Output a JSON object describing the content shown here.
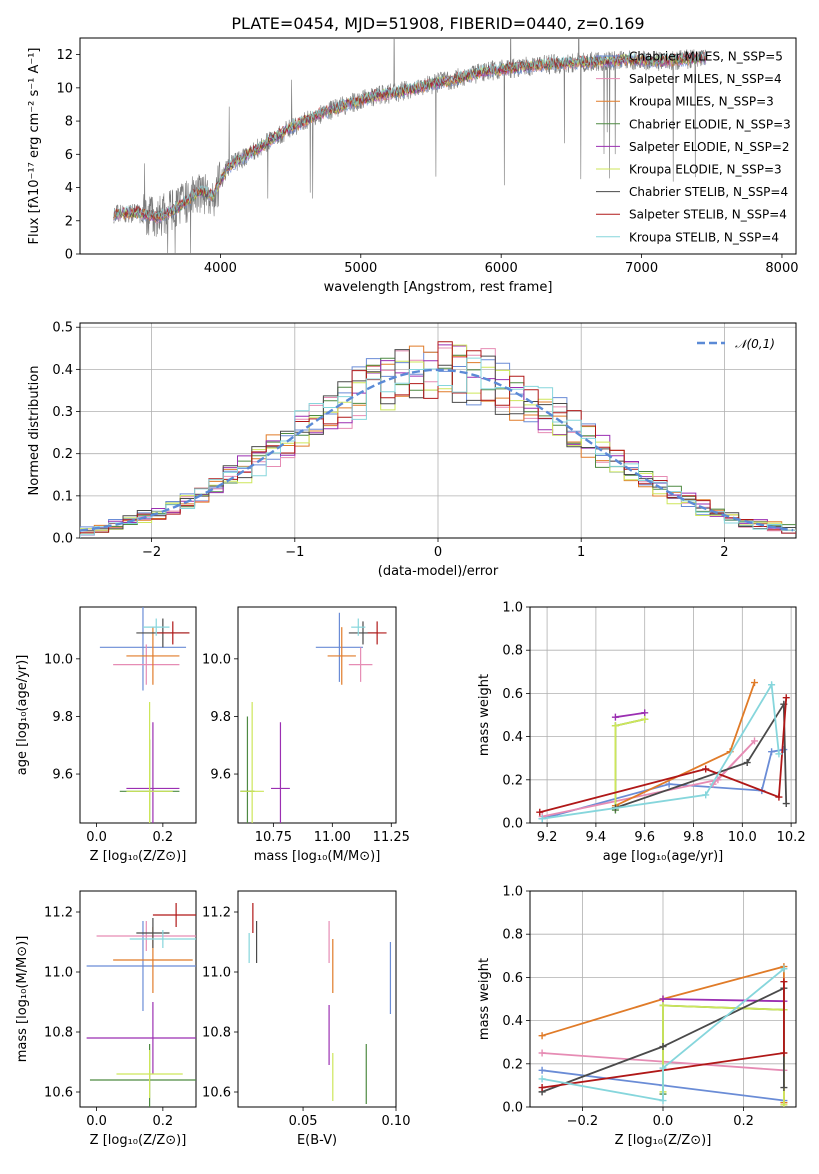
{
  "title": "PLATE=0454, MJD=51908, FIBERID=0440, z=0.169",
  "colors": {
    "chabrier_miles": "#6a8cd6",
    "salpeter_miles": "#e68cb4",
    "kroupa_miles": "#e07b28",
    "chabrier_elodie": "#4e8a42",
    "salpeter_elodie": "#9b2fb2",
    "kroupa_elodie": "#cde65a",
    "chabrier_stelib": "#4a4a4a",
    "salpeter_stelib": "#b01818",
    "kroupa_stelib": "#86d6dc",
    "data": "#7a7a7a",
    "gaussian": "#5b8ad6"
  },
  "chart_data": [
    {
      "id": "spectrum",
      "type": "line",
      "xlabel": "wavelength [Angstrom, rest frame]",
      "ylabel": "Flux [fλ10⁻¹⁷ erg cm⁻² s⁻¹ A⁻¹]",
      "xlim": [
        3000,
        8100
      ],
      "ylim": [
        0,
        13
      ],
      "xticks": [
        "4000",
        "5000",
        "6000",
        "7000",
        "8000"
      ],
      "yticks": [
        "0",
        "2",
        "4",
        "6",
        "8",
        "10",
        "12"
      ],
      "legend_position": "top-right",
      "legend": [
        "Chabrier MILES, N_SSP=5",
        "Salpeter MILES, N_SSP=4",
        "Kroupa MILES, N_SSP=3",
        "Chabrier ELODIE, N_SSP=3",
        "Salpeter ELODIE, N_SSP=2",
        "Kroupa ELODIE, N_SSP=3",
        "Chabrier STELIB, N_SSP=4",
        "Salpeter STELIB, N_SSP=4",
        "Kroupa STELIB, N_SSP=4"
      ],
      "continuum": {
        "x": [
          3250,
          3400,
          3550,
          3700,
          3850,
          3950,
          4050,
          4200,
          4350,
          4500,
          4700,
          4900,
          5100,
          5300,
          5500,
          5700,
          5900,
          6100,
          6300,
          6500,
          6700,
          6900,
          7100,
          7300,
          7450
        ],
        "y": [
          2.4,
          2.5,
          2.2,
          2.8,
          3.8,
          3.5,
          5.2,
          6.0,
          6.8,
          7.6,
          8.4,
          9.0,
          9.5,
          9.8,
          10.2,
          10.6,
          11.0,
          11.2,
          11.4,
          11.5,
          11.6,
          11.7,
          11.6,
          11.7,
          11.8
        ]
      }
    },
    {
      "id": "residuals",
      "type": "histogram",
      "xlabel": "(data-model)/error",
      "ylabel": "Normed distribution",
      "xlim": [
        -2.5,
        2.5
      ],
      "ylim": [
        0,
        0.51
      ],
      "xticks": [
        "−2",
        "−1",
        "0",
        "1",
        "2"
      ],
      "yticks": [
        "0.0",
        "0.1",
        "0.2",
        "0.3",
        "0.4",
        "0.5"
      ],
      "bin_width": 0.1,
      "legend": [
        "𝒩(0,1)"
      ],
      "legend_position": "top-right"
    },
    {
      "id": "age_vs_z",
      "type": "errorbar",
      "xlabel": "Z [log₁₀(Z/Z⊙)]",
      "ylabel": "age  [log₁₀(age/yr)]",
      "xlim": [
        -0.05,
        0.3
      ],
      "ylim": [
        9.43,
        10.18
      ],
      "xticks": [
        "0.0",
        "0.2"
      ],
      "yticks": [
        "9.6",
        "9.8",
        "10.0"
      ],
      "points": [
        {
          "model": "chabrier_miles",
          "x": 0.14,
          "y": 10.04,
          "xerr": 0.13,
          "yerr": 0.15
        },
        {
          "model": "salpeter_miles",
          "x": 0.15,
          "y": 9.98,
          "xerr": 0.1,
          "yerr": 0.07
        },
        {
          "model": "kroupa_miles",
          "x": 0.17,
          "y": 10.01,
          "xerr": 0.08,
          "yerr": 0.1
        },
        {
          "model": "chabrier_elodie",
          "x": 0.16,
          "y": 9.54,
          "xerr": 0.09,
          "yerr": 0.18
        },
        {
          "model": "salpeter_elodie",
          "x": 0.17,
          "y": 9.55,
          "xerr": 0.08,
          "yerr": 0.23
        },
        {
          "model": "kroupa_elodie",
          "x": 0.16,
          "y": 9.54,
          "xerr": 0.07,
          "yerr": 0.31
        },
        {
          "model": "chabrier_stelib",
          "x": 0.2,
          "y": 10.09,
          "xerr": 0.08,
          "yerr": 0.05
        },
        {
          "model": "salpeter_stelib",
          "x": 0.23,
          "y": 10.09,
          "xerr": 0.05,
          "yerr": 0.04
        },
        {
          "model": "kroupa_stelib",
          "x": 0.18,
          "y": 10.11,
          "xerr": 0.04,
          "yerr": 0.03
        }
      ]
    },
    {
      "id": "age_vs_mass",
      "type": "errorbar",
      "xlabel": "mass [log₁₀(M/M⊙)]",
      "ylabel": "",
      "xlim": [
        10.6,
        11.27
      ],
      "ylim": [
        9.43,
        10.18
      ],
      "xticks": [
        "10.75",
        "11.00",
        "11.25"
      ],
      "yticks": [
        "9.6",
        "9.8",
        "10.0"
      ],
      "points": [
        {
          "model": "chabrier_miles",
          "x": 11.03,
          "y": 10.04,
          "xerr": 0.1,
          "yerr": 0.12
        },
        {
          "model": "salpeter_miles",
          "x": 11.12,
          "y": 9.98,
          "xerr": 0.05,
          "yerr": 0.06
        },
        {
          "model": "kroupa_miles",
          "x": 11.04,
          "y": 10.01,
          "xerr": 0.06,
          "yerr": 0.1
        },
        {
          "model": "chabrier_elodie",
          "x": 10.64,
          "y": 9.54,
          "xerr": 0.03,
          "yerr": 0.26
        },
        {
          "model": "salpeter_elodie",
          "x": 10.78,
          "y": 9.55,
          "xerr": 0.04,
          "yerr": 0.23
        },
        {
          "model": "kroupa_elodie",
          "x": 10.66,
          "y": 9.54,
          "xerr": 0.05,
          "yerr": 0.31
        },
        {
          "model": "chabrier_stelib",
          "x": 11.13,
          "y": 10.09,
          "xerr": 0.06,
          "yerr": 0.04
        },
        {
          "model": "salpeter_stelib",
          "x": 11.19,
          "y": 10.09,
          "xerr": 0.04,
          "yerr": 0.04
        },
        {
          "model": "kroupa_stelib",
          "x": 11.11,
          "y": 10.11,
          "xerr": 0.03,
          "yerr": 0.03
        }
      ]
    },
    {
      "id": "weight_vs_age",
      "type": "line",
      "xlabel": "age  [log₁₀(age/yr)]",
      "ylabel": "mass weight",
      "xlim": [
        9.13,
        10.22
      ],
      "ylim": [
        0,
        1
      ],
      "xticks": [
        "9.2",
        "9.4",
        "9.6",
        "9.8",
        "10.0",
        "10.2"
      ],
      "yticks": [
        "0.0",
        "0.2",
        "0.4",
        "0.6",
        "0.8",
        "1.0"
      ],
      "series": [
        {
          "model": "chabrier_miles",
          "x": [
            9.18,
            9.7,
            10.08,
            10.12,
            10.17
          ],
          "y": [
            0.02,
            0.18,
            0.15,
            0.33,
            0.34
          ]
        },
        {
          "model": "salpeter_miles",
          "x": [
            9.18,
            9.9,
            10.05,
            9.88
          ],
          "y": [
            0.03,
            0.2,
            0.38,
            0.18
          ]
        },
        {
          "model": "kroupa_miles",
          "x": [
            9.48,
            9.95,
            10.05
          ],
          "y": [
            0.08,
            0.33,
            0.65
          ]
        },
        {
          "model": "chabrier_elodie",
          "x": [
            9.48,
            9.48,
            9.6
          ],
          "y": [
            0.06,
            0.45,
            0.48
          ]
        },
        {
          "model": "salpeter_elodie",
          "x": [
            9.48,
            9.6
          ],
          "y": [
            0.49,
            0.51
          ]
        },
        {
          "model": "kroupa_elodie",
          "x": [
            9.48,
            9.48,
            9.6
          ],
          "y": [
            0.07,
            0.45,
            0.48
          ]
        },
        {
          "model": "chabrier_stelib",
          "x": [
            9.48,
            10.02,
            10.17,
            10.18
          ],
          "y": [
            0.07,
            0.28,
            0.55,
            0.09
          ]
        },
        {
          "model": "salpeter_stelib",
          "x": [
            9.17,
            9.85,
            10.15,
            10.18
          ],
          "y": [
            0.05,
            0.25,
            0.12,
            0.58
          ]
        },
        {
          "model": "kroupa_stelib",
          "x": [
            9.18,
            9.85,
            10.12,
            10.15
          ],
          "y": [
            0.02,
            0.13,
            0.64,
            0.32
          ]
        }
      ]
    },
    {
      "id": "mass_vs_z",
      "type": "errorbar",
      "xlabel": "Z [log₁₀(Z/Z⊙)]",
      "ylabel": "mass [log₁₀(M/M⊙)]",
      "xlim": [
        -0.05,
        0.3
      ],
      "ylim": [
        10.55,
        11.27
      ],
      "xticks": [
        "0.0",
        "0.2"
      ],
      "yticks": [
        "10.6",
        "10.8",
        "11.0",
        "11.2"
      ],
      "points": [
        {
          "model": "chabrier_miles",
          "x": 0.14,
          "y": 11.02,
          "xerr": 0.17,
          "yerr": 0.15
        },
        {
          "model": "salpeter_miles",
          "x": 0.15,
          "y": 11.12,
          "xerr": 0.15,
          "yerr": 0.05
        },
        {
          "model": "kroupa_miles",
          "x": 0.17,
          "y": 11.04,
          "xerr": 0.12,
          "yerr": 0.11
        },
        {
          "model": "chabrier_elodie",
          "x": 0.16,
          "y": 10.64,
          "xerr": 0.18,
          "yerr": 0.12
        },
        {
          "model": "salpeter_elodie",
          "x": 0.17,
          "y": 10.78,
          "xerr": 0.2,
          "yerr": 0.12
        },
        {
          "model": "kroupa_elodie",
          "x": 0.16,
          "y": 10.66,
          "xerr": 0.1,
          "yerr": 0.08
        },
        {
          "model": "chabrier_stelib",
          "x": 0.17,
          "y": 11.13,
          "xerr": 0.05,
          "yerr": 0.05
        },
        {
          "model": "salpeter_stelib",
          "x": 0.24,
          "y": 11.19,
          "xerr": 0.07,
          "yerr": 0.04
        },
        {
          "model": "kroupa_stelib",
          "x": 0.2,
          "y": 11.11,
          "xerr": 0.1,
          "yerr": 0.03
        }
      ]
    },
    {
      "id": "mass_vs_ebv",
      "type": "errorbar",
      "xlabel": "E(B-V)",
      "ylabel": "",
      "xlim": [
        0.015,
        0.1
      ],
      "ylim": [
        10.55,
        11.27
      ],
      "xticks": [
        "0.05",
        "0.10"
      ],
      "yticks": [
        "10.6",
        "10.8",
        "11.0",
        "11.2"
      ],
      "points": [
        {
          "model": "chabrier_miles",
          "x": 0.097,
          "y": 10.98,
          "xerr": 0,
          "yerr": 0.12
        },
        {
          "model": "salpeter_miles",
          "x": 0.064,
          "y": 11.1,
          "xerr": 0,
          "yerr": 0.07
        },
        {
          "model": "kroupa_miles",
          "x": 0.066,
          "y": 11.02,
          "xerr": 0,
          "yerr": 0.09
        },
        {
          "model": "chabrier_elodie",
          "x": 0.084,
          "y": 10.66,
          "xerr": 0,
          "yerr": 0.1
        },
        {
          "model": "salpeter_elodie",
          "x": 0.064,
          "y": 10.79,
          "xerr": 0,
          "yerr": 0.1
        },
        {
          "model": "kroupa_elodie",
          "x": 0.066,
          "y": 10.65,
          "xerr": 0,
          "yerr": 0.08
        },
        {
          "model": "chabrier_stelib",
          "x": 0.025,
          "y": 11.1,
          "xerr": 0,
          "yerr": 0.07
        },
        {
          "model": "salpeter_stelib",
          "x": 0.023,
          "y": 11.18,
          "xerr": 0,
          "yerr": 0.05
        },
        {
          "model": "kroupa_stelib",
          "x": 0.021,
          "y": 11.08,
          "xerr": 0,
          "yerr": 0.05
        }
      ]
    },
    {
      "id": "weight_vs_z",
      "type": "line",
      "xlabel": "Z [log₁₀(Z/Z⊙)]",
      "ylabel": "mass weight",
      "xlim": [
        -0.33,
        0.33
      ],
      "ylim": [
        0,
        1
      ],
      "xticks": [
        "−0.2",
        "0.0",
        "0.2"
      ],
      "yticks": [
        "0.0",
        "0.2",
        "0.4",
        "0.6",
        "0.8",
        "1.0"
      ],
      "series": [
        {
          "model": "chabrier_miles",
          "x": [
            -0.3,
            0.0,
            0.3
          ],
          "y": [
            0.17,
            0.1,
            0.03
          ]
        },
        {
          "model": "salpeter_miles",
          "x": [
            -0.3,
            0.3
          ],
          "y": [
            0.25,
            0.17
          ]
        },
        {
          "model": "kroupa_miles",
          "x": [
            -0.3,
            0.0,
            0.3,
            0.3
          ],
          "y": [
            0.33,
            0.5,
            0.65,
            0.02
          ]
        },
        {
          "model": "chabrier_elodie",
          "x": [
            0.0,
            0.0,
            0.3
          ],
          "y": [
            0.06,
            0.47,
            0.45
          ]
        },
        {
          "model": "salpeter_elodie",
          "x": [
            0.0,
            0.3
          ],
          "y": [
            0.5,
            0.49
          ]
        },
        {
          "model": "kroupa_elodie",
          "x": [
            0.0,
            0.0,
            0.3,
            0.3
          ],
          "y": [
            0.07,
            0.47,
            0.45,
            0.01
          ]
        },
        {
          "model": "chabrier_stelib",
          "x": [
            -0.3,
            0.0,
            0.3,
            0.3
          ],
          "y": [
            0.07,
            0.28,
            0.55,
            0.09
          ]
        },
        {
          "model": "salpeter_stelib",
          "x": [
            -0.3,
            0.3,
            0.3
          ],
          "y": [
            0.09,
            0.25,
            0.58
          ]
        },
        {
          "model": "kroupa_stelib",
          "x": [
            -0.3,
            0.0,
            0.0,
            0.3
          ],
          "y": [
            0.13,
            0.03,
            0.18,
            0.64
          ]
        }
      ]
    }
  ]
}
